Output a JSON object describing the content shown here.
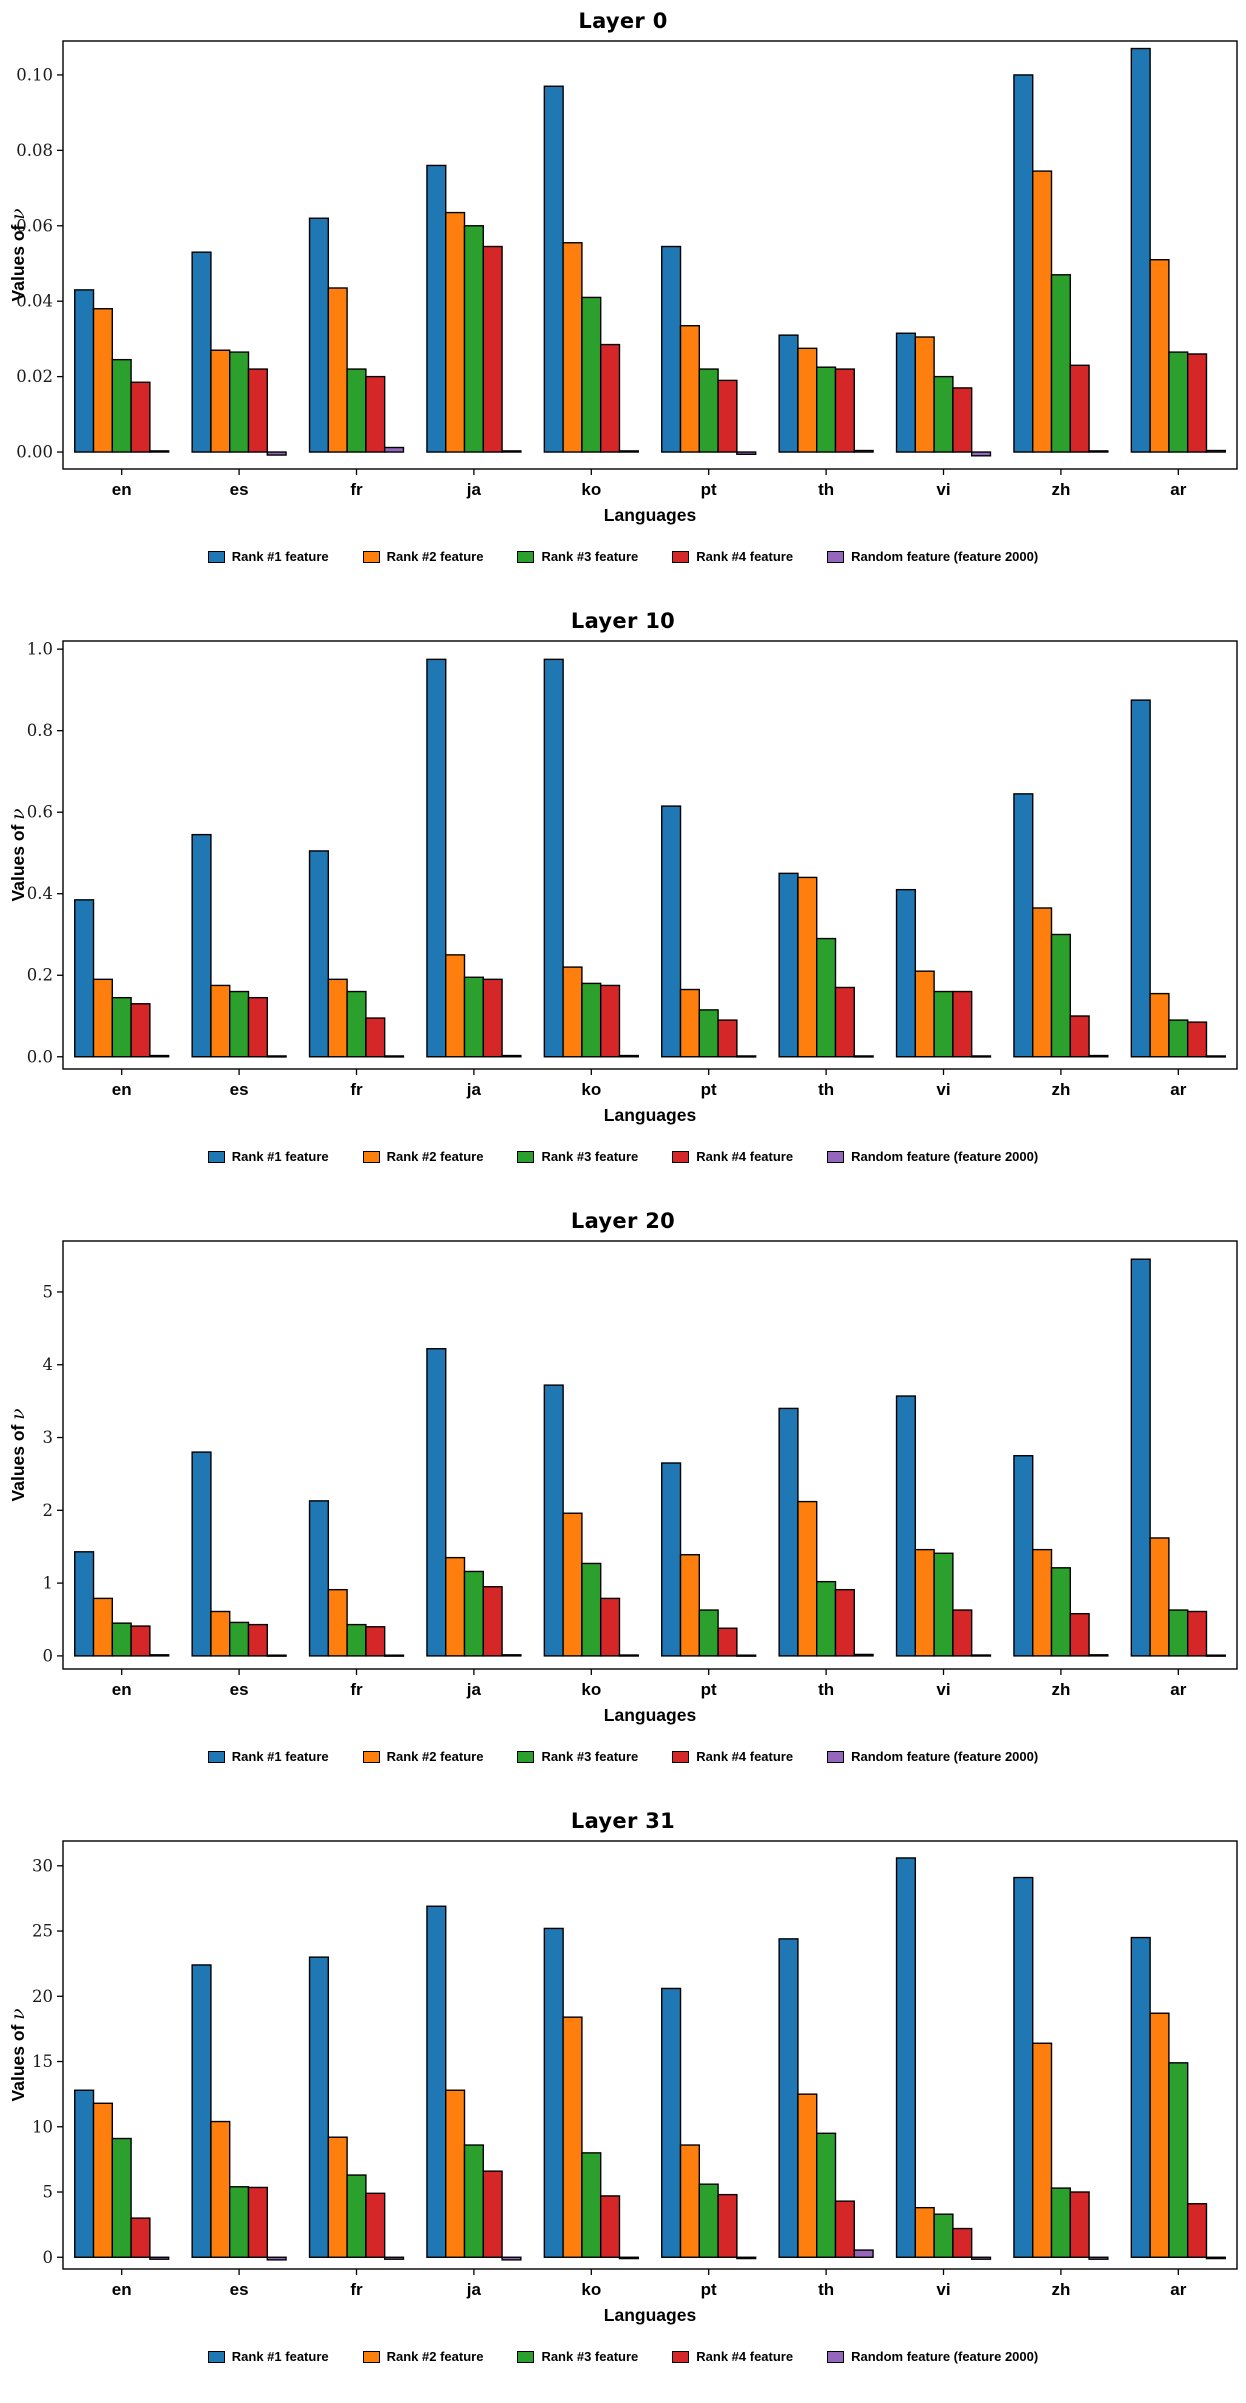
{
  "figure": {
    "background": "#ffffff",
    "series_colors": [
      "#1f77b4",
      "#ff7f0e",
      "#2ca02c",
      "#d62728",
      "#9467bd"
    ],
    "bar_edge_color": "#000000"
  },
  "chart_data": [
    {
      "type": "bar",
      "title": "Layer 0",
      "xlabel": "Languages",
      "ylabel": "Values of ν",
      "grid": false,
      "legend_position": "bottom",
      "categories": [
        "en",
        "es",
        "fr",
        "ja",
        "ko",
        "pt",
        "th",
        "vi",
        "zh",
        "ar"
      ],
      "ylim": [
        -0.0045,
        0.109
      ],
      "ytick_values": [
        0.0,
        0.02,
        0.04,
        0.06,
        0.08,
        0.1
      ],
      "ytick_labels": [
        "0.00",
        "0.02",
        "0.04",
        "0.06",
        "0.08",
        "0.10"
      ],
      "series": [
        {
          "name": "Rank #1 feature",
          "color": "#1f77b4",
          "values": [
            0.043,
            0.053,
            0.062,
            0.076,
            0.097,
            0.0545,
            0.031,
            0.0315,
            0.1,
            0.107
          ]
        },
        {
          "name": "Rank #2 feature",
          "color": "#ff7f0e",
          "values": [
            0.038,
            0.027,
            0.0435,
            0.0635,
            0.0555,
            0.0335,
            0.0275,
            0.0305,
            0.0745,
            0.051
          ]
        },
        {
          "name": "Rank #3 feature",
          "color": "#2ca02c",
          "values": [
            0.0245,
            0.0265,
            0.022,
            0.06,
            0.041,
            0.022,
            0.0225,
            0.02,
            0.047,
            0.0265
          ]
        },
        {
          "name": "Rank #4 feature",
          "color": "#d62728",
          "values": [
            0.0185,
            0.022,
            0.02,
            0.0545,
            0.0285,
            0.019,
            0.022,
            0.017,
            0.023,
            0.026
          ]
        },
        {
          "name": "Random feature (feature 2000)",
          "color": "#9467bd",
          "values": [
            0.0003,
            -0.0008,
            0.0012,
            0.0003,
            0.0003,
            -0.0006,
            0.0004,
            -0.001,
            0.0003,
            0.0004
          ]
        }
      ]
    },
    {
      "type": "bar",
      "title": "Layer 10",
      "xlabel": "Languages",
      "ylabel": "Values of ν",
      "grid": false,
      "legend_position": "bottom",
      "categories": [
        "en",
        "es",
        "fr",
        "ja",
        "ko",
        "pt",
        "th",
        "vi",
        "zh",
        "ar"
      ],
      "ylim": [
        -0.03,
        1.02
      ],
      "ytick_values": [
        0.0,
        0.2,
        0.4,
        0.6,
        0.8,
        1.0
      ],
      "ytick_labels": [
        "0.0",
        "0.2",
        "0.4",
        "0.6",
        "0.8",
        "1.0"
      ],
      "series": [
        {
          "name": "Rank #1 feature",
          "color": "#1f77b4",
          "values": [
            0.385,
            0.545,
            0.505,
            0.975,
            0.975,
            0.615,
            0.45,
            0.41,
            0.645,
            0.875
          ]
        },
        {
          "name": "Rank #2 feature",
          "color": "#ff7f0e",
          "values": [
            0.19,
            0.175,
            0.19,
            0.25,
            0.22,
            0.165,
            0.44,
            0.21,
            0.365,
            0.155
          ]
        },
        {
          "name": "Rank #3 feature",
          "color": "#2ca02c",
          "values": [
            0.145,
            0.16,
            0.16,
            0.195,
            0.18,
            0.115,
            0.29,
            0.16,
            0.3,
            0.09
          ]
        },
        {
          "name": "Rank #4 feature",
          "color": "#d62728",
          "values": [
            0.13,
            0.145,
            0.095,
            0.19,
            0.175,
            0.09,
            0.17,
            0.16,
            0.1,
            0.085
          ]
        },
        {
          "name": "Random feature (feature 2000)",
          "color": "#9467bd",
          "values": [
            0.003,
            0.002,
            0.002,
            0.003,
            0.003,
            0.002,
            0.002,
            0.002,
            0.003,
            0.002
          ]
        }
      ]
    },
    {
      "type": "bar",
      "title": "Layer 20",
      "xlabel": "Languages",
      "ylabel": "Values of ν",
      "grid": false,
      "legend_position": "bottom",
      "categories": [
        "en",
        "es",
        "fr",
        "ja",
        "ko",
        "pt",
        "th",
        "vi",
        "zh",
        "ar"
      ],
      "ylim": [
        -0.18,
        5.7
      ],
      "ytick_values": [
        0,
        1,
        2,
        3,
        4,
        5
      ],
      "ytick_labels": [
        "0",
        "1",
        "2",
        "3",
        "4",
        "5"
      ],
      "series": [
        {
          "name": "Rank #1 feature",
          "color": "#1f77b4",
          "values": [
            1.43,
            2.8,
            2.13,
            4.22,
            3.72,
            2.65,
            3.4,
            3.57,
            2.75,
            5.45
          ]
        },
        {
          "name": "Rank #2 feature",
          "color": "#ff7f0e",
          "values": [
            0.79,
            0.61,
            0.91,
            1.35,
            1.96,
            1.39,
            2.12,
            1.46,
            1.46,
            1.62
          ]
        },
        {
          "name": "Rank #3 feature",
          "color": "#2ca02c",
          "values": [
            0.45,
            0.46,
            0.43,
            1.16,
            1.27,
            0.63,
            1.02,
            1.41,
            1.21,
            0.63
          ]
        },
        {
          "name": "Rank #4 feature",
          "color": "#d62728",
          "values": [
            0.41,
            0.43,
            0.4,
            0.95,
            0.79,
            0.38,
            0.91,
            0.63,
            0.58,
            0.61
          ]
        },
        {
          "name": "Random feature (feature 2000)",
          "color": "#9467bd",
          "values": [
            0.015,
            0.01,
            0.01,
            0.015,
            0.012,
            0.01,
            0.02,
            0.012,
            0.015,
            0.01
          ]
        }
      ]
    },
    {
      "type": "bar",
      "title": "Layer 31",
      "xlabel": "Languages",
      "ylabel": "Values of ν",
      "grid": false,
      "legend_position": "bottom",
      "categories": [
        "en",
        "es",
        "fr",
        "ja",
        "ko",
        "pt",
        "th",
        "vi",
        "zh",
        "ar"
      ],
      "ylim": [
        -0.9,
        31.9
      ],
      "ytick_values": [
        0,
        5,
        10,
        15,
        20,
        25,
        30
      ],
      "ytick_labels": [
        "0",
        "5",
        "10",
        "15",
        "20",
        "25",
        "30"
      ],
      "series": [
        {
          "name": "Rank #1 feature",
          "color": "#1f77b4",
          "values": [
            12.8,
            22.4,
            23.0,
            26.9,
            25.2,
            20.6,
            24.4,
            30.6,
            29.1,
            24.5
          ]
        },
        {
          "name": "Rank #2 feature",
          "color": "#ff7f0e",
          "values": [
            11.8,
            10.4,
            9.2,
            12.8,
            18.4,
            8.6,
            12.5,
            3.8,
            16.4,
            18.7
          ]
        },
        {
          "name": "Rank #3 feature",
          "color": "#2ca02c",
          "values": [
            9.1,
            5.4,
            6.3,
            8.6,
            8.0,
            5.6,
            9.5,
            3.3,
            5.3,
            14.9
          ]
        },
        {
          "name": "Rank #4 feature",
          "color": "#d62728",
          "values": [
            3.0,
            5.35,
            4.9,
            6.6,
            4.7,
            4.8,
            4.3,
            2.2,
            5.0,
            4.1
          ]
        },
        {
          "name": "Random feature (feature 2000)",
          "color": "#9467bd",
          "values": [
            -0.15,
            -0.2,
            -0.15,
            -0.2,
            -0.1,
            -0.1,
            0.55,
            -0.15,
            -0.15,
            -0.1
          ]
        }
      ]
    }
  ]
}
